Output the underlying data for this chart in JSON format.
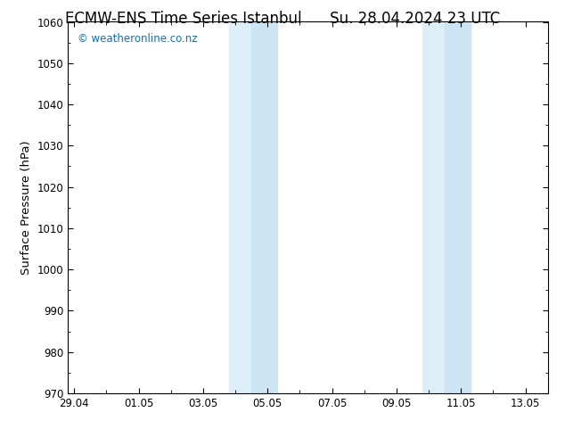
{
  "title_left": "ECMW-ENS Time Series Istanbul",
  "title_right": "Su. 28.04.2024 23 UTC",
  "ylabel": "Surface Pressure (hPa)",
  "ylim": [
    970,
    1060
  ],
  "yticks": [
    970,
    980,
    990,
    1000,
    1010,
    1020,
    1030,
    1040,
    1050,
    1060
  ],
  "xlim_start": -0.2,
  "xlim_end": 14.7,
  "xtick_positions": [
    0,
    2,
    4,
    6,
    8,
    10,
    12,
    14
  ],
  "xtick_labels": [
    "29.04",
    "01.05",
    "03.05",
    "05.05",
    "07.05",
    "09.05",
    "11.05",
    "13.05"
  ],
  "shaded_bands": [
    {
      "x_start": 4.8,
      "x_end": 5.5
    },
    {
      "x_start": 5.5,
      "x_end": 6.3
    },
    {
      "x_start": 10.8,
      "x_end": 11.5
    },
    {
      "x_start": 11.5,
      "x_end": 12.3
    }
  ],
  "shaded_color": "#ddeef8",
  "shaded_color2": "#cce4f4",
  "background_color": "#ffffff",
  "plot_bg_color": "#ffffff",
  "watermark_text": "© weatheronline.co.nz",
  "watermark_color": "#1a6eb5",
  "title_fontsize": 12,
  "tick_fontsize": 8.5,
  "ylabel_fontsize": 9.5,
  "watermark_fontsize": 8.5
}
